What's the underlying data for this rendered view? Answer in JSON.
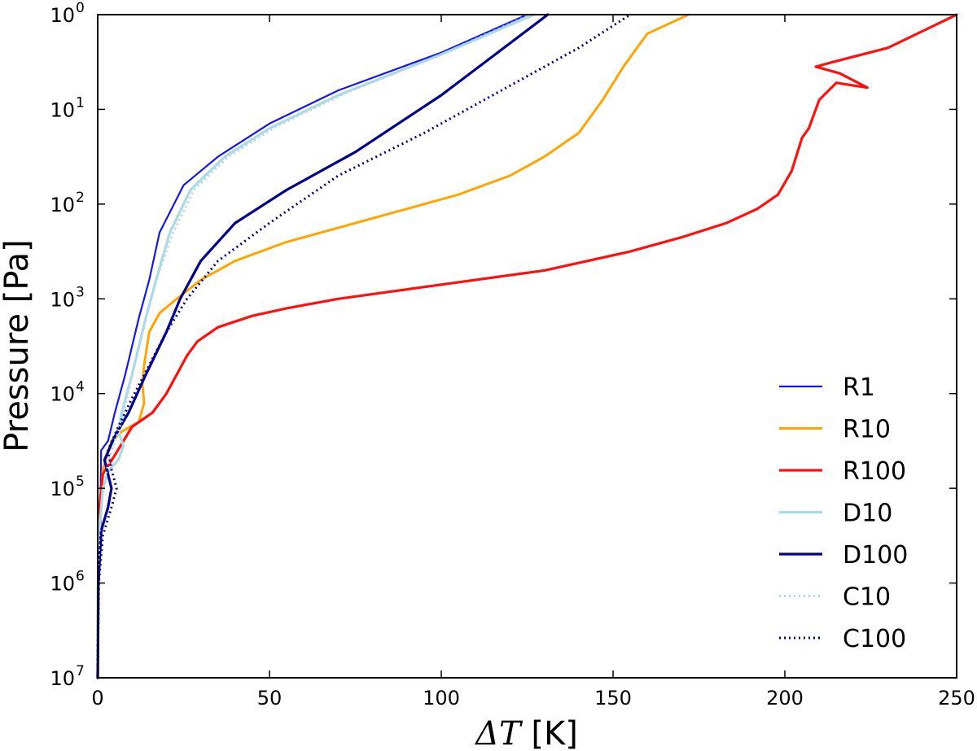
{
  "chart_data": {
    "type": "line",
    "title": "",
    "xlabel_symbol": "ΔT",
    "xlabel_unit": "[K]",
    "ylabel": "Pressure [Pa]",
    "xlim": [
      0,
      250
    ],
    "ylim_log10": [
      0,
      7
    ],
    "y_inverted": true,
    "y_scale": "log",
    "grid": false,
    "legend_position": "lower-right",
    "xticks": [
      0,
      50,
      100,
      150,
      200,
      250
    ],
    "xtick_labels": [
      "0",
      "50",
      "100",
      "150",
      "200",
      "250"
    ],
    "yticks_log10": [
      0,
      1,
      2,
      3,
      4,
      5,
      6,
      7
    ],
    "ytick_base": "10",
    "ytick_exponents": [
      "0",
      "1",
      "2",
      "3",
      "4",
      "5",
      "6",
      "7"
    ],
    "series": [
      {
        "name": "R1",
        "color": "#1515ee",
        "style": "solid",
        "width": 2.2,
        "points": [
          [
            0,
            7
          ],
          [
            0.1,
            6
          ],
          [
            0.3,
            5.6
          ],
          [
            0.8,
            5.2
          ],
          [
            1,
            4.6
          ],
          [
            3,
            4.5
          ],
          [
            5,
            4.2
          ],
          [
            8,
            3.8
          ],
          [
            12,
            3.2
          ],
          [
            15,
            2.8
          ],
          [
            18,
            2.3
          ],
          [
            25,
            1.8
          ],
          [
            35,
            1.5
          ],
          [
            50,
            1.15
          ],
          [
            70,
            0.8
          ],
          [
            100,
            0.4
          ],
          [
            125,
            0
          ]
        ]
      },
      {
        "name": "R10",
        "color": "#ffa500",
        "style": "solid",
        "width": 3,
        "points": [
          [
            0,
            7
          ],
          [
            0.1,
            6
          ],
          [
            0.5,
            5.4
          ],
          [
            1.5,
            4.8
          ],
          [
            4,
            4.5
          ],
          [
            7,
            4.4
          ],
          [
            12,
            4.3
          ],
          [
            13.5,
            4.1
          ],
          [
            13,
            3.9
          ],
          [
            13.5,
            3.7
          ],
          [
            15,
            3.35
          ],
          [
            18,
            3.15
          ],
          [
            23,
            3.0
          ],
          [
            30,
            2.8
          ],
          [
            40,
            2.6
          ],
          [
            55,
            2.4
          ],
          [
            70,
            2.25
          ],
          [
            90,
            2.05
          ],
          [
            105,
            1.9
          ],
          [
            120,
            1.7
          ],
          [
            130,
            1.5
          ],
          [
            140,
            1.25
          ],
          [
            147,
            0.9
          ],
          [
            153,
            0.55
          ],
          [
            160,
            0.2
          ],
          [
            172,
            0
          ]
        ]
      },
      {
        "name": "R100",
        "color": "#ff1010",
        "style": "solid",
        "width": 3.2,
        "points": [
          [
            0,
            7
          ],
          [
            0.2,
            6
          ],
          [
            1,
            5.45
          ],
          [
            0.5,
            5.2
          ],
          [
            1.5,
            4.85
          ],
          [
            5,
            4.65
          ],
          [
            10,
            4.35
          ],
          [
            16,
            4.2
          ],
          [
            20,
            4.0
          ],
          [
            23,
            3.8
          ],
          [
            26,
            3.6
          ],
          [
            29,
            3.45
          ],
          [
            35,
            3.3
          ],
          [
            45,
            3.18
          ],
          [
            55,
            3.1
          ],
          [
            70,
            3.0
          ],
          [
            100,
            2.85
          ],
          [
            130,
            2.7
          ],
          [
            155,
            2.5
          ],
          [
            170,
            2.35
          ],
          [
            183,
            2.2
          ],
          [
            192,
            2.05
          ],
          [
            198,
            1.9
          ],
          [
            202,
            1.65
          ],
          [
            205,
            1.3
          ],
          [
            207,
            1.2
          ],
          [
            210,
            0.9
          ],
          [
            215,
            0.72
          ],
          [
            224,
            0.77
          ],
          [
            216,
            0.62
          ],
          [
            209,
            0.55
          ],
          [
            214,
            0.5
          ],
          [
            230,
            0.35
          ],
          [
            250,
            0
          ]
        ]
      },
      {
        "name": "D10",
        "color": "#add8e6",
        "style": "solid",
        "width": 3.2,
        "points": [
          [
            0,
            7
          ],
          [
            0.1,
            6
          ],
          [
            0.4,
            5.5
          ],
          [
            1.5,
            5
          ],
          [
            3.5,
            4.8
          ],
          [
            6,
            4.7
          ],
          [
            7.5,
            4.55
          ],
          [
            6,
            4.4
          ],
          [
            7,
            4.2
          ],
          [
            10,
            3.8
          ],
          [
            14,
            3.2
          ],
          [
            17,
            2.8
          ],
          [
            21,
            2.3
          ],
          [
            27,
            1.85
          ],
          [
            37,
            1.5
          ],
          [
            50,
            1.2
          ],
          [
            70,
            0.85
          ],
          [
            100,
            0.42
          ],
          [
            127,
            0
          ]
        ]
      },
      {
        "name": "D100",
        "color": "#00008b",
        "style": "solid",
        "width": 3.2,
        "points": [
          [
            0,
            7
          ],
          [
            0.2,
            6
          ],
          [
            1,
            5.45
          ],
          [
            3,
            5.2
          ],
          [
            4,
            5.0
          ],
          [
            3,
            4.85
          ],
          [
            2,
            4.7
          ],
          [
            5,
            4.45
          ],
          [
            9,
            4.2
          ],
          [
            14,
            3.8
          ],
          [
            20,
            3.35
          ],
          [
            24,
            3.0
          ],
          [
            30,
            2.6
          ],
          [
            40,
            2.2
          ],
          [
            55,
            1.85
          ],
          [
            75,
            1.45
          ],
          [
            100,
            0.85
          ],
          [
            131,
            0
          ]
        ]
      },
      {
        "name": "C10",
        "color": "#add8e6",
        "style": "dotted",
        "width": 3,
        "points": [
          [
            0,
            7
          ],
          [
            0.1,
            6
          ],
          [
            0.4,
            5.5
          ],
          [
            1.5,
            5
          ],
          [
            3,
            4.75
          ],
          [
            5,
            4.5
          ],
          [
            7,
            4.3
          ],
          [
            10,
            3.8
          ],
          [
            14,
            3.2
          ],
          [
            17,
            2.8
          ],
          [
            22,
            2.3
          ],
          [
            28,
            1.85
          ],
          [
            38,
            1.5
          ],
          [
            52,
            1.18
          ],
          [
            72,
            0.83
          ],
          [
            100,
            0.42
          ],
          [
            126,
            0
          ]
        ]
      },
      {
        "name": "C100",
        "color": "#00008b",
        "style": "dotted",
        "width": 3,
        "points": [
          [
            0,
            7
          ],
          [
            0.3,
            6
          ],
          [
            1.5,
            5.5
          ],
          [
            4,
            5.2
          ],
          [
            5.5,
            5.0
          ],
          [
            4,
            4.8
          ],
          [
            3,
            4.6
          ],
          [
            6,
            4.35
          ],
          [
            10,
            4.05
          ],
          [
            15,
            3.7
          ],
          [
            20,
            3.35
          ],
          [
            26,
            3.0
          ],
          [
            35,
            2.6
          ],
          [
            50,
            2.2
          ],
          [
            70,
            1.7
          ],
          [
            95,
            1.25
          ],
          [
            120,
            0.75
          ],
          [
            140,
            0.35
          ],
          [
            155,
            0
          ]
        ]
      }
    ]
  }
}
